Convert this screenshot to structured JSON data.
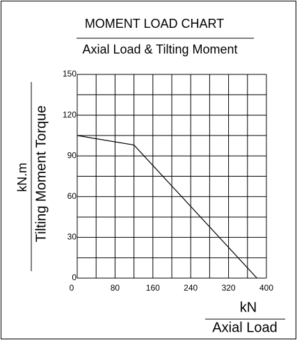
{
  "chart_data": {
    "type": "line",
    "title": "MOMENT LOAD CHART",
    "subtitle": "Axial Load & Tilting Moment",
    "y_unit": "kN.m",
    "y_label": "Tilting Moment Torque",
    "x_unit": "kN",
    "x_label": "Axial Load",
    "x": [
      0,
      120,
      380
    ],
    "series": [
      {
        "color": "#000000",
        "values": [
          105,
          98,
          0
        ]
      }
    ],
    "xlim": [
      0,
      400
    ],
    "xticks": [
      0,
      80,
      160,
      240,
      320,
      400
    ],
    "ylim": [
      0,
      150
    ],
    "yticks": [
      0,
      30,
      60,
      90,
      120,
      150
    ],
    "grid": true
  }
}
